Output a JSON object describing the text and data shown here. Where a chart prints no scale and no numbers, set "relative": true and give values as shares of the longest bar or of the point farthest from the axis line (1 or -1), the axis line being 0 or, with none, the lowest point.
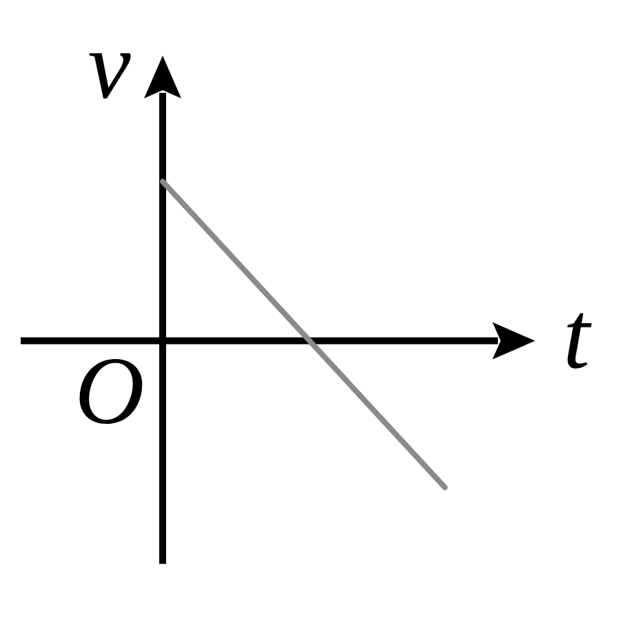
{
  "chart_data": {
    "type": "line",
    "xlabel": "t",
    "ylabel": "v",
    "annotations": [
      "O"
    ],
    "categories": [
      null,
      null
    ],
    "series": [
      {
        "color": "#8a8a8a",
        "values": [
          1,
          -0.92
        ]
      }
    ],
    "relative": true
  }
}
